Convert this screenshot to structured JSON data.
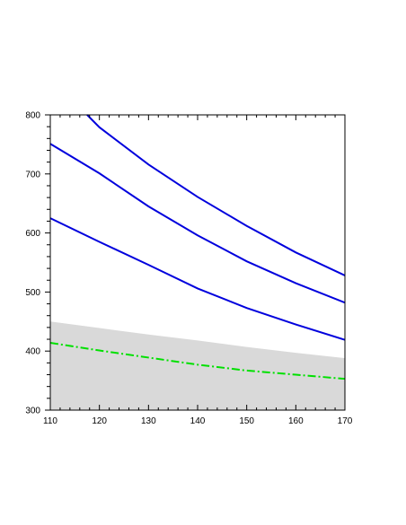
{
  "chart_data": {
    "type": "line",
    "title": "",
    "xlabel": "",
    "ylabel": "",
    "xlim": [
      110,
      170
    ],
    "ylim": [
      300,
      800
    ],
    "grid": false,
    "x_ticks": [
      110,
      120,
      130,
      140,
      150,
      160,
      170
    ],
    "x_tick_labels": [
      "110",
      "120",
      "130",
      "140",
      "150",
      "160",
      "170"
    ],
    "y_ticks": [
      300,
      400,
      500,
      600,
      700,
      800
    ],
    "y_tick_labels": [
      "300",
      "400",
      "500",
      "600",
      "700",
      "800"
    ],
    "band": {
      "color": "#d9d9d9",
      "x": [
        110,
        120,
        130,
        140,
        150,
        160,
        170
      ],
      "lower": [
        300,
        300,
        300,
        300,
        300,
        300,
        300
      ],
      "upper": [
        450,
        439,
        428,
        418,
        407,
        397,
        388
      ]
    },
    "series": [
      {
        "color": "#0000dd",
        "style": "solid",
        "x": [
          117.5,
          120,
          130,
          140,
          150,
          160,
          170
        ],
        "values": [
          800,
          779,
          716,
          661,
          612,
          567,
          528
        ]
      },
      {
        "color": "#0000dd",
        "style": "solid",
        "x": [
          110,
          120,
          130,
          140,
          150,
          160,
          170
        ],
        "values": [
          751,
          701,
          645,
          596,
          552,
          515,
          482
        ]
      },
      {
        "color": "#0000dd",
        "style": "solid",
        "x": [
          110,
          120,
          130,
          140,
          150,
          160,
          170
        ],
        "values": [
          625,
          585,
          546,
          506,
          473,
          445,
          419
        ]
      },
      {
        "color": "#00e000",
        "style": "dashdot",
        "x": [
          110,
          120,
          130,
          140,
          150,
          160,
          170
        ],
        "values": [
          414,
          401,
          389,
          377,
          367,
          360,
          353
        ]
      }
    ]
  }
}
